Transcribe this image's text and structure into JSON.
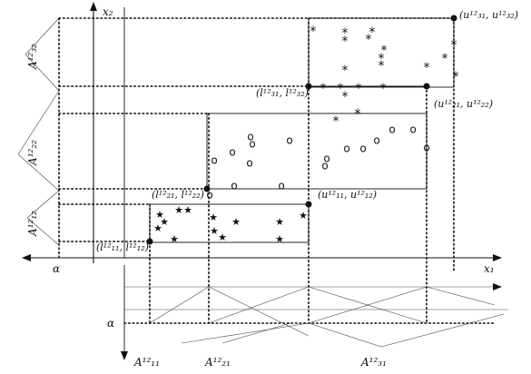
{
  "labels": {
    "x2": "x₂",
    "x1": "x₁",
    "alpha_left": "α",
    "alpha_bottom": "α",
    "A32": "A¹²₃₂",
    "A22": "A¹²₂₂",
    "A12": "A¹²₁₂",
    "A11": "A¹²₁₁",
    "A21": "A¹²₂₁",
    "A31": "A¹²₃₁",
    "l1": "(l¹²₁₁, l¹²₁₂)",
    "l2": "(l¹²₂₁, l¹²₂₂)",
    "l3": "(l¹²₃₁, l¹²₃₂)",
    "u1": "(u¹²₁₁, u¹²₁₂)",
    "u2": "(u¹²₂₁, u¹²₂₂)",
    "u3": "(u¹²₃₁, u¹²₃₂)"
  },
  "markers": {
    "cluster1": "★",
    "cluster2": "o",
    "cluster3": "*"
  }
}
